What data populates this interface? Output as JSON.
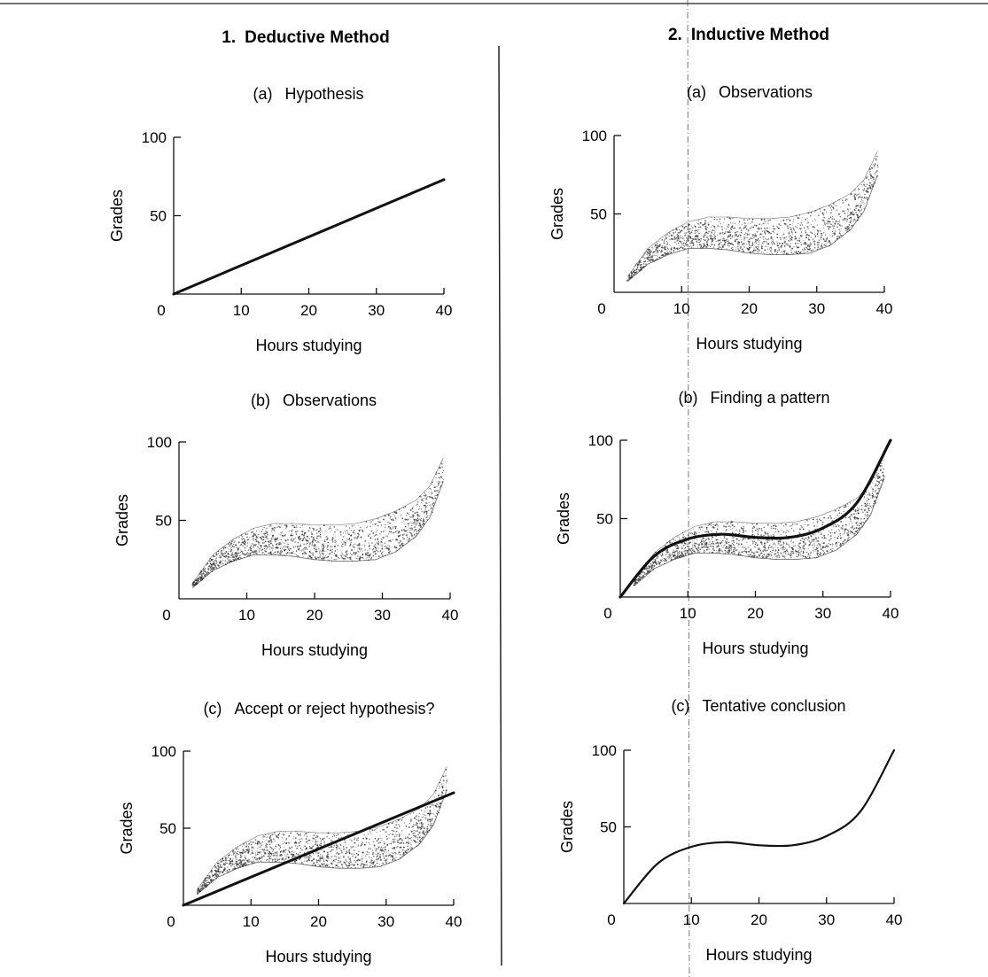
{
  "left_column": {
    "number": "1.",
    "title": "Deductive Method"
  },
  "right_column": {
    "number": "2.",
    "title": "Inductive Method"
  },
  "chart_data": [
    {
      "id": "d-a",
      "type": "line",
      "column": "left",
      "letter": "(a)",
      "title": "Hypothesis",
      "xlabel": "Hours studying",
      "ylabel": "Grades",
      "xlim": [
        0,
        40
      ],
      "ylim": [
        0,
        100
      ],
      "xticks": [
        0,
        10,
        20,
        30,
        40
      ],
      "yticks": [
        50,
        100
      ],
      "scatter_band": null,
      "lines": [
        {
          "kind": "straight",
          "x": [
            0,
            40
          ],
          "y": [
            0,
            73
          ]
        }
      ]
    },
    {
      "id": "d-b",
      "type": "scatter",
      "column": "left",
      "letter": "(b)",
      "title": "Observations",
      "xlabel": "Hours studying",
      "ylabel": "Grades",
      "xlim": [
        0,
        40
      ],
      "ylim": [
        0,
        100
      ],
      "xticks": [
        0,
        10,
        20,
        30,
        40
      ],
      "yticks": [
        50,
        100
      ],
      "scatter_band": {
        "x": [
          2,
          5,
          8,
          11,
          14,
          17,
          20,
          23,
          26,
          29,
          32,
          35,
          37,
          39
        ],
        "lower": [
          7,
          18,
          24,
          28,
          28,
          27,
          25,
          24,
          24,
          25,
          30,
          40,
          52,
          75
        ],
        "upper": [
          10,
          28,
          38,
          45,
          48,
          48,
          47,
          47,
          48,
          51,
          56,
          63,
          72,
          90
        ]
      },
      "lines": []
    },
    {
      "id": "d-c",
      "type": "scatter",
      "column": "left",
      "letter": "(c)",
      "title": "Accept or reject hypothesis?",
      "xlabel": "Hours studying",
      "ylabel": "Grades",
      "xlim": [
        0,
        40
      ],
      "ylim": [
        0,
        100
      ],
      "xticks": [
        0,
        10,
        20,
        30,
        40
      ],
      "yticks": [
        50,
        100
      ],
      "scatter_band": {
        "x": [
          2,
          5,
          8,
          11,
          14,
          17,
          20,
          23,
          26,
          29,
          32,
          35,
          37,
          39
        ],
        "lower": [
          7,
          18,
          24,
          28,
          28,
          27,
          25,
          24,
          24,
          25,
          30,
          40,
          52,
          75
        ],
        "upper": [
          10,
          28,
          38,
          45,
          48,
          48,
          47,
          47,
          48,
          51,
          56,
          63,
          72,
          90
        ]
      },
      "lines": [
        {
          "kind": "straight",
          "x": [
            0,
            40
          ],
          "y": [
            0,
            73
          ]
        }
      ]
    },
    {
      "id": "i-a",
      "type": "scatter",
      "column": "right",
      "letter": "(a)",
      "title": "Observations",
      "xlabel": "Hours studying",
      "ylabel": "Grades",
      "xlim": [
        0,
        40
      ],
      "ylim": [
        0,
        100
      ],
      "xticks": [
        0,
        10,
        20,
        30,
        40
      ],
      "yticks": [
        50,
        100
      ],
      "scatter_band": {
        "x": [
          2,
          5,
          8,
          11,
          14,
          17,
          20,
          23,
          26,
          29,
          32,
          35,
          37,
          39
        ],
        "lower": [
          7,
          18,
          24,
          28,
          28,
          27,
          25,
          24,
          24,
          25,
          30,
          40,
          52,
          75
        ],
        "upper": [
          10,
          28,
          38,
          45,
          48,
          48,
          47,
          47,
          48,
          51,
          56,
          63,
          72,
          90
        ]
      },
      "lines": []
    },
    {
      "id": "i-b",
      "type": "scatter",
      "column": "right",
      "letter": "(b)",
      "title": "Finding a pattern",
      "xlabel": "Hours studying",
      "ylabel": "Grades",
      "xlim": [
        0,
        40
      ],
      "ylim": [
        0,
        100
      ],
      "xticks": [
        0,
        10,
        20,
        30,
        40
      ],
      "yticks": [
        50,
        100
      ],
      "scatter_band": {
        "x": [
          2,
          5,
          8,
          11,
          14,
          17,
          20,
          23,
          26,
          29,
          32,
          35,
          37,
          39
        ],
        "lower": [
          7,
          18,
          24,
          28,
          28,
          27,
          25,
          24,
          24,
          25,
          30,
          40,
          52,
          75
        ],
        "upper": [
          10,
          28,
          38,
          45,
          48,
          48,
          47,
          47,
          48,
          51,
          56,
          63,
          72,
          90
        ]
      },
      "lines": [
        {
          "kind": "curve",
          "x": [
            0,
            5,
            10,
            15,
            20,
            25,
            30,
            35,
            40
          ],
          "y": [
            0,
            26,
            37,
            40,
            38,
            38,
            44,
            60,
            100
          ]
        }
      ]
    },
    {
      "id": "i-c",
      "type": "line",
      "column": "right",
      "letter": "(c)",
      "title": "Tentative conclusion",
      "xlabel": "Hours studying",
      "ylabel": "Grades",
      "xlim": [
        0,
        40
      ],
      "ylim": [
        0,
        100
      ],
      "xticks": [
        0,
        10,
        20,
        30,
        40
      ],
      "yticks": [
        50,
        100
      ],
      "scatter_band": null,
      "lines": [
        {
          "kind": "curve",
          "x": [
            0,
            5,
            10,
            15,
            20,
            25,
            30,
            35,
            40
          ],
          "y": [
            0,
            26,
            37,
            40,
            38,
            38,
            44,
            60,
            100
          ]
        }
      ]
    }
  ]
}
